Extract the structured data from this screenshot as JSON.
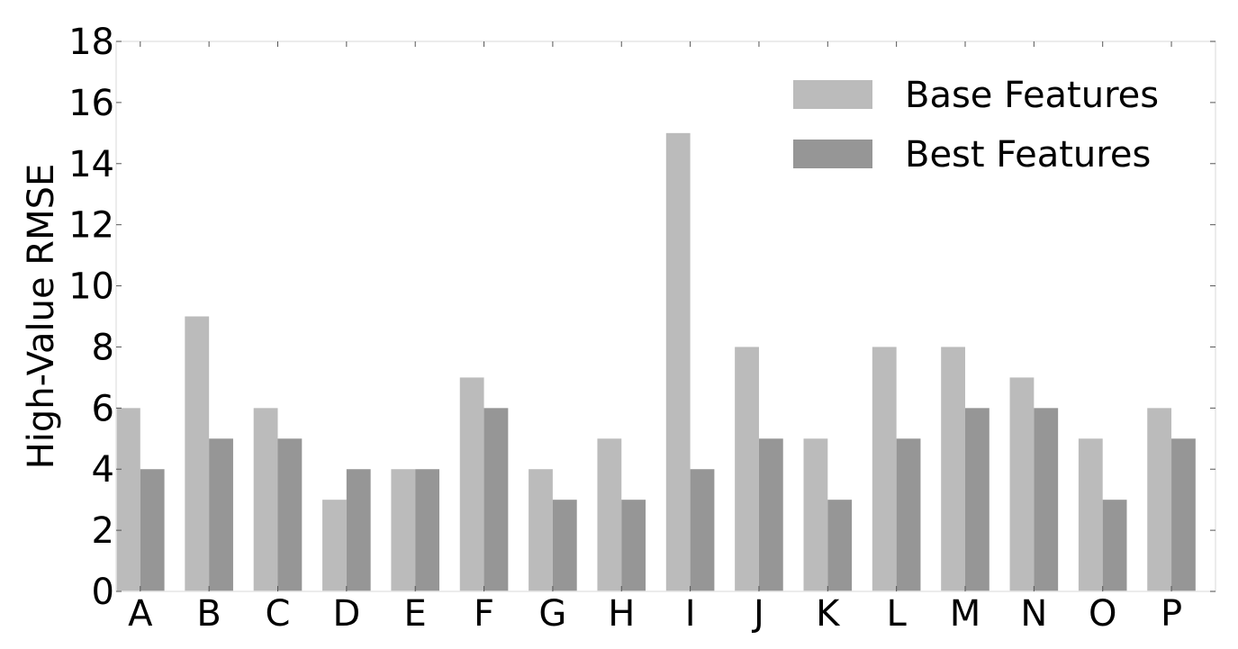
{
  "chart_data": {
    "type": "bar",
    "categories": [
      "A",
      "B",
      "C",
      "D",
      "E",
      "F",
      "G",
      "H",
      "I",
      "J",
      "K",
      "L",
      "M",
      "N",
      "O",
      "P"
    ],
    "series": [
      {
        "name": "Base Features",
        "color": "#bbbbbb",
        "values": [
          6,
          9,
          6,
          3,
          4,
          7,
          4,
          5,
          15,
          8,
          5,
          8,
          8,
          7,
          5,
          6
        ]
      },
      {
        "name": "Best Features",
        "color": "#969696",
        "values": [
          4,
          5,
          5,
          4,
          4,
          6,
          3,
          3,
          4,
          5,
          3,
          5,
          6,
          6,
          3,
          5
        ]
      }
    ],
    "title": "",
    "xlabel": "",
    "ylabel": "High-Value RMSE",
    "ylim": [
      0,
      18
    ],
    "yticks": [
      0,
      2,
      4,
      6,
      8,
      10,
      12,
      14,
      16,
      18
    ],
    "grid": false,
    "legend_position": "top-right"
  }
}
